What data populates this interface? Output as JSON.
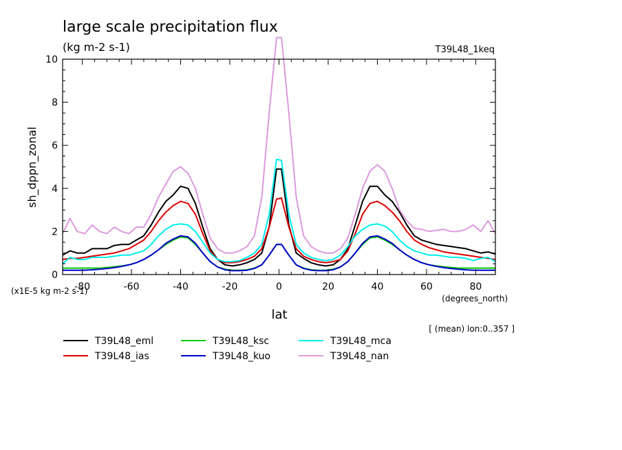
{
  "chart_data": {
    "type": "line",
    "title": "large scale precipitation flux",
    "units_label": "(kg m-2 s-1)",
    "experiment_label": "T39L48_1keq",
    "ylabel": "sh_dppn_zonal",
    "xlabel": "lat",
    "x_units": "(degrees_north)",
    "scale_label": "(x1E-5 kg m-2 s-1)",
    "mean_label": "[ (mean) lon:0..357 ]",
    "xlim": [
      -88,
      88
    ],
    "ylim": [
      0,
      10
    ],
    "x_ticks": [
      -80,
      -60,
      -40,
      -20,
      0,
      20,
      40,
      60,
      80
    ],
    "x_tick_labels": [
      "-80",
      "-60",
      "-40",
      "-20",
      "0",
      "20",
      "40",
      "60",
      "80"
    ],
    "y_ticks": [
      0,
      2,
      4,
      6,
      8,
      10
    ],
    "y_tick_labels": [
      "0",
      "2",
      "4",
      "6",
      "8",
      "10"
    ],
    "x": [
      -88,
      -85,
      -82,
      -79,
      -76,
      -73,
      -70,
      -67,
      -64,
      -61,
      -58,
      -55,
      -52,
      -49,
      -46,
      -43,
      -40,
      -37,
      -34,
      -31,
      -28,
      -25,
      -22,
      -19,
      -16,
      -13,
      -10,
      -7,
      -4,
      -1,
      1,
      4,
      7,
      10,
      13,
      16,
      19,
      22,
      25,
      28,
      31,
      34,
      37,
      40,
      43,
      46,
      49,
      52,
      55,
      58,
      61,
      64,
      67,
      70,
      73,
      76,
      79,
      82,
      85,
      88
    ],
    "series": [
      {
        "name": "T39L48_eml",
        "color": "#000000",
        "values": [
          0.9,
          1.1,
          1.0,
          1.0,
          1.2,
          1.2,
          1.2,
          1.35,
          1.4,
          1.4,
          1.6,
          1.8,
          2.3,
          2.9,
          3.4,
          3.7,
          4.1,
          4.0,
          3.3,
          2.2,
          1.2,
          0.7,
          0.45,
          0.4,
          0.45,
          0.55,
          0.7,
          1.0,
          2.2,
          4.9,
          4.9,
          2.3,
          1.0,
          0.75,
          0.55,
          0.45,
          0.4,
          0.45,
          0.7,
          1.2,
          2.3,
          3.4,
          4.1,
          4.1,
          3.7,
          3.4,
          2.9,
          2.3,
          1.8,
          1.6,
          1.5,
          1.4,
          1.35,
          1.3,
          1.25,
          1.2,
          1.1,
          1.0,
          1.05,
          0.95
        ]
      },
      {
        "name": "T39L48_ias",
        "color": "#dd0000",
        "values": [
          0.7,
          0.75,
          0.75,
          0.8,
          0.85,
          0.9,
          0.95,
          1.0,
          1.1,
          1.2,
          1.4,
          1.6,
          2.0,
          2.5,
          2.9,
          3.2,
          3.4,
          3.3,
          2.8,
          1.9,
          1.1,
          0.7,
          0.55,
          0.55,
          0.6,
          0.7,
          0.85,
          1.2,
          2.2,
          3.5,
          3.55,
          2.2,
          1.2,
          0.85,
          0.7,
          0.6,
          0.55,
          0.6,
          0.7,
          1.1,
          1.9,
          2.8,
          3.3,
          3.4,
          3.2,
          2.9,
          2.5,
          2.0,
          1.6,
          1.4,
          1.25,
          1.15,
          1.05,
          1.0,
          0.95,
          0.9,
          0.85,
          0.8,
          0.75,
          0.7
        ]
      },
      {
        "name": "T39L48_ksc",
        "color": "#00cc00",
        "values": [
          0.3,
          0.3,
          0.3,
          0.3,
          0.3,
          0.3,
          0.33,
          0.36,
          0.4,
          0.45,
          0.55,
          0.7,
          0.9,
          1.15,
          1.4,
          1.6,
          1.75,
          1.7,
          1.4,
          1.0,
          0.6,
          0.35,
          0.25,
          0.2,
          0.2,
          0.22,
          0.3,
          0.45,
          0.9,
          1.4,
          1.4,
          0.9,
          0.45,
          0.3,
          0.22,
          0.2,
          0.2,
          0.25,
          0.35,
          0.6,
          1.0,
          1.4,
          1.7,
          1.75,
          1.6,
          1.4,
          1.15,
          0.9,
          0.7,
          0.55,
          0.45,
          0.4,
          0.36,
          0.33,
          0.3,
          0.3,
          0.3,
          0.3,
          0.3,
          0.3
        ]
      },
      {
        "name": "T39L48_kuo",
        "color": "#0000cc",
        "values": [
          0.2,
          0.2,
          0.2,
          0.2,
          0.22,
          0.25,
          0.28,
          0.32,
          0.38,
          0.45,
          0.55,
          0.7,
          0.9,
          1.15,
          1.45,
          1.65,
          1.8,
          1.75,
          1.45,
          1.0,
          0.6,
          0.35,
          0.22,
          0.18,
          0.18,
          0.2,
          0.28,
          0.45,
          0.9,
          1.4,
          1.4,
          0.9,
          0.45,
          0.28,
          0.2,
          0.18,
          0.18,
          0.22,
          0.35,
          0.6,
          1.0,
          1.45,
          1.75,
          1.8,
          1.65,
          1.45,
          1.15,
          0.9,
          0.7,
          0.55,
          0.45,
          0.38,
          0.32,
          0.28,
          0.25,
          0.22,
          0.2,
          0.2,
          0.2,
          0.2
        ]
      },
      {
        "name": "T39L48_mca",
        "color": "#00eeee",
        "values": [
          0.5,
          0.8,
          0.7,
          0.7,
          0.8,
          0.8,
          0.8,
          0.85,
          0.9,
          0.9,
          1.0,
          1.1,
          1.4,
          1.8,
          2.1,
          2.3,
          2.35,
          2.3,
          2.0,
          1.5,
          1.0,
          0.7,
          0.6,
          0.6,
          0.65,
          0.8,
          1.0,
          1.4,
          2.8,
          5.35,
          5.3,
          2.8,
          1.4,
          1.0,
          0.8,
          0.7,
          0.65,
          0.7,
          0.9,
          1.3,
          1.8,
          2.1,
          2.3,
          2.35,
          2.25,
          2.0,
          1.6,
          1.3,
          1.1,
          1.0,
          0.9,
          0.9,
          0.85,
          0.8,
          0.8,
          0.75,
          0.65,
          0.75,
          0.8,
          0.6
        ]
      },
      {
        "name": "T39L48_nan",
        "color": "#dd99dd",
        "values": [
          1.9,
          2.6,
          2.0,
          1.9,
          2.3,
          2.0,
          1.9,
          2.2,
          2.0,
          1.9,
          2.2,
          2.2,
          2.8,
          3.6,
          4.2,
          4.8,
          5.0,
          4.7,
          4.0,
          2.8,
          1.7,
          1.2,
          1.0,
          1.0,
          1.1,
          1.3,
          1.8,
          3.6,
          7.5,
          11.0,
          11.0,
          7.5,
          3.6,
          1.8,
          1.3,
          1.1,
          1.0,
          1.0,
          1.2,
          1.7,
          2.8,
          4.0,
          4.8,
          5.1,
          4.8,
          4.0,
          3.0,
          2.5,
          2.15,
          2.1,
          2.0,
          2.05,
          2.1,
          2.0,
          2.0,
          2.1,
          2.3,
          2.0,
          2.5,
          1.9
        ]
      }
    ]
  },
  "legend": {
    "items": [
      {
        "label": "T39L48_eml",
        "color": "#000000"
      },
      {
        "label": "T39L48_ias",
        "color": "#dd0000"
      },
      {
        "label": "T39L48_ksc",
        "color": "#00cc00"
      },
      {
        "label": "T39L48_kuo",
        "color": "#0000cc"
      },
      {
        "label": "T39L48_mca",
        "color": "#00eeee"
      },
      {
        "label": "T39L48_nan",
        "color": "#dd99dd"
      }
    ]
  }
}
